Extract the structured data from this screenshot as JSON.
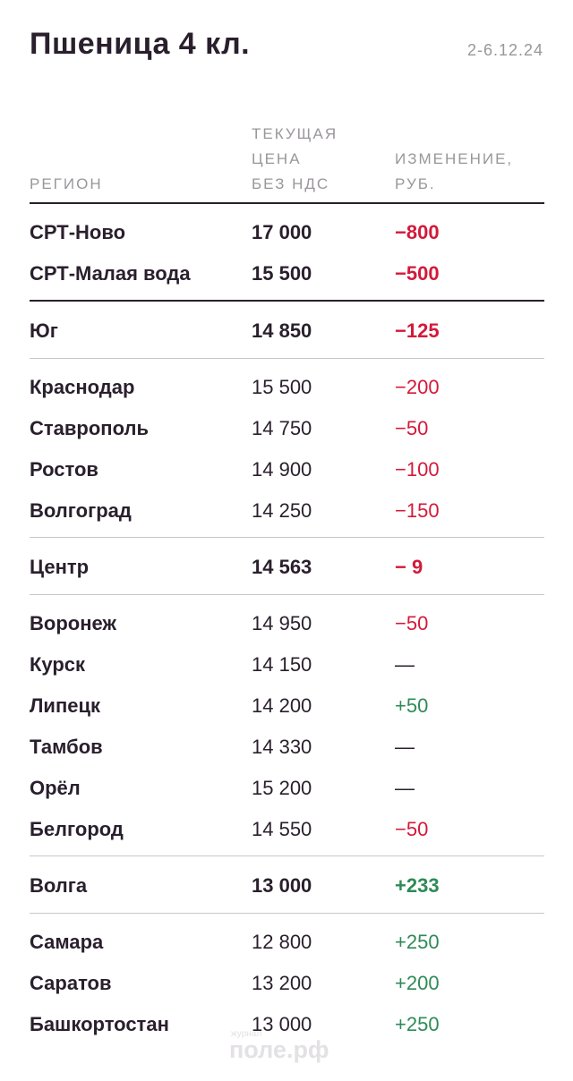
{
  "title": "Пшеница 4 кл.",
  "date": "2-6.12.24",
  "headers": {
    "region": "РЕГИОН",
    "price": [
      "ТЕКУЩАЯ",
      "ЦЕНА",
      "БЕЗ НДС"
    ],
    "change": [
      "ИЗМЕНЕНИЕ,",
      "РУБ."
    ]
  },
  "sections": [
    {
      "type": "bold",
      "rows": [
        {
          "region": "СРТ-Ново",
          "price": "17 000",
          "change": "−800",
          "sign": "neg"
        },
        {
          "region": "СРТ-Малая вода",
          "price": "15 500",
          "change": "−500",
          "sign": "neg"
        }
      ]
    },
    {
      "type": "group",
      "rows": [
        {
          "region": "Юг",
          "price": "14 850",
          "change": "−125",
          "sign": "neg"
        }
      ]
    },
    {
      "type": "normal",
      "rows": [
        {
          "region": "Краснодар",
          "price": "15 500",
          "change": "−200",
          "sign": "neg"
        },
        {
          "region": "Ставрополь",
          "price": "14 750",
          "change": "−50",
          "sign": "neg"
        },
        {
          "region": "Ростов",
          "price": "14 900",
          "change": "−100",
          "sign": "neg"
        },
        {
          "region": "Волгоград",
          "price": "14 250",
          "change": "−150",
          "sign": "neg"
        }
      ]
    },
    {
      "type": "group",
      "rows": [
        {
          "region": "Центр",
          "price": "14 563",
          "change": "− 9",
          "sign": "neg"
        }
      ]
    },
    {
      "type": "normal",
      "rows": [
        {
          "region": "Воронеж",
          "price": "14 950",
          "change": "−50",
          "sign": "neg"
        },
        {
          "region": "Курск",
          "price": "14 150",
          "change": "—",
          "sign": "neu"
        },
        {
          "region": "Липецк",
          "price": "14 200",
          "change": "+50",
          "sign": "pos"
        },
        {
          "region": "Тамбов",
          "price": "14 330",
          "change": "—",
          "sign": "neu"
        },
        {
          "region": "Орёл",
          "price": "15 200",
          "change": "—",
          "sign": "neu"
        },
        {
          "region": "Белгород",
          "price": "14 550",
          "change": "−50",
          "sign": "neg"
        }
      ]
    },
    {
      "type": "group",
      "rows": [
        {
          "region": "Волга",
          "price": "13 000",
          "change": "+233",
          "sign": "pos"
        }
      ]
    },
    {
      "type": "normal",
      "rows": [
        {
          "region": "Самара",
          "price": "12 800",
          "change": "+250",
          "sign": "pos"
        },
        {
          "region": "Саратов",
          "price": "13 200",
          "change": "+200",
          "sign": "pos"
        },
        {
          "region": "Башкортостан",
          "price": "13 000",
          "change": "+250",
          "sign": "pos"
        }
      ]
    }
  ],
  "watermark": {
    "small": "журнал",
    "main": "поле.рф"
  },
  "colors": {
    "text": "#2a1f2d",
    "negative": "#d4193a",
    "positive": "#2e8b57",
    "muted": "#9a969b"
  }
}
